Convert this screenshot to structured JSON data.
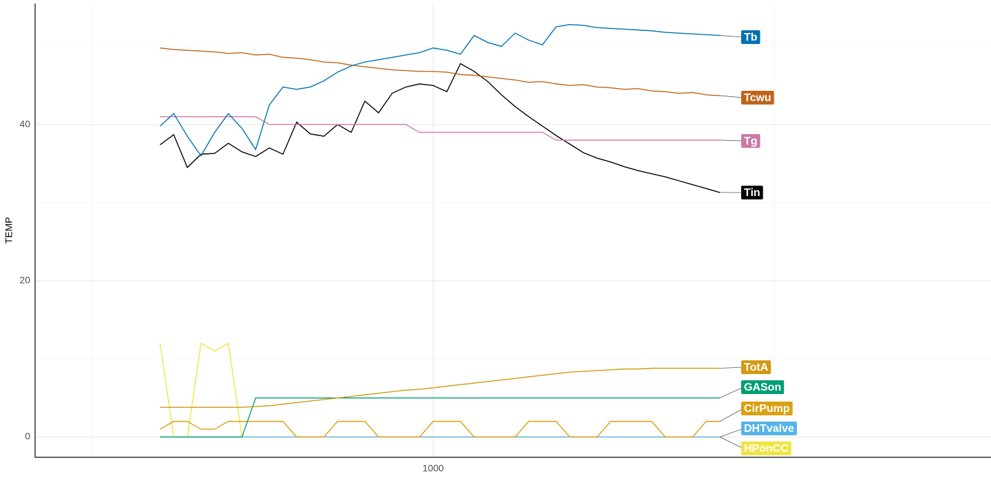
{
  "chart_data": {
    "type": "line",
    "y_label": "TEMP",
    "x": [
      600,
      620,
      640,
      660,
      680,
      700,
      720,
      740,
      760,
      780,
      800,
      820,
      840,
      860,
      880,
      900,
      920,
      940,
      960,
      980,
      1000,
      1020,
      1040,
      1060,
      1080,
      1100,
      1120,
      1140,
      1160,
      1180,
      1200,
      1220,
      1240,
      1260,
      1280,
      1300,
      1320,
      1340,
      1360,
      1380,
      1400,
      1420
    ],
    "xlim": [
      417,
      1817
    ],
    "xticks": [
      1000
    ],
    "x_minor_ticks": [
      500,
      1500
    ],
    "ylim": [
      -2.6,
      55.5
    ],
    "yticks": [
      0,
      20,
      40
    ],
    "y_minor_ticks": [
      10,
      30,
      50
    ],
    "grid": true,
    "series": [
      {
        "name": "HPonCC",
        "color": "#F0E442",
        "values": [
          12,
          0,
          0,
          12,
          11,
          12,
          0,
          0,
          0,
          0,
          0,
          0,
          0,
          0,
          0,
          0,
          0,
          0,
          0,
          0,
          0,
          0,
          0,
          0,
          0,
          0,
          0,
          0,
          0,
          0,
          0,
          0,
          0,
          0,
          0,
          0,
          0,
          0,
          0,
          0,
          0,
          0
        ]
      },
      {
        "name": "DHTvalve",
        "color": "#56B4E9",
        "values": [
          0,
          0,
          0,
          0,
          0,
          0,
          0,
          0,
          0,
          0,
          0,
          0,
          0,
          0,
          0,
          0,
          0,
          0,
          0,
          0,
          0,
          0,
          0,
          0,
          0,
          0,
          0,
          0,
          0,
          0,
          0,
          0,
          0,
          0,
          0,
          0,
          0,
          0,
          0,
          0,
          0,
          0
        ]
      },
      {
        "name": "CirPump",
        "color": "#D9A010",
        "values": [
          1,
          2,
          2,
          1,
          1,
          2,
          2,
          2,
          2,
          2,
          0,
          0,
          0,
          2,
          2,
          2,
          0,
          0,
          0,
          0,
          2,
          2,
          2,
          0,
          0,
          0,
          0,
          2,
          2,
          2,
          0,
          0,
          0,
          2,
          2,
          2,
          2,
          0,
          0,
          0,
          2,
          2
        ]
      },
      {
        "name": "GASon",
        "color": "#009E73",
        "values": [
          0,
          0,
          0,
          0,
          0,
          0,
          0,
          5,
          5,
          5,
          5,
          5,
          5,
          5,
          5,
          5,
          5,
          5,
          5,
          5,
          5,
          5,
          5,
          5,
          5,
          5,
          5,
          5,
          5,
          5,
          5,
          5,
          5,
          5,
          5,
          5,
          5,
          5,
          5,
          5,
          5,
          5
        ]
      },
      {
        "name": "TotA",
        "color": "#D19A12",
        "values": [
          3.8,
          3.8,
          3.8,
          3.8,
          3.8,
          3.8,
          3.8,
          3.9,
          4.0,
          4.2,
          4.4,
          4.6,
          4.8,
          5.0,
          5.2,
          5.4,
          5.6,
          5.8,
          6.0,
          6.1,
          6.3,
          6.5,
          6.7,
          6.9,
          7.1,
          7.3,
          7.5,
          7.7,
          7.9,
          8.1,
          8.3,
          8.4,
          8.5,
          8.6,
          8.7,
          8.7,
          8.8,
          8.8,
          8.8,
          8.8,
          8.8,
          8.8
        ]
      },
      {
        "name": "Tin",
        "color": "#000000",
        "values": [
          37.4,
          38.7,
          34.5,
          36.2,
          36.3,
          37.6,
          36.5,
          35.9,
          37.0,
          36.2,
          40.3,
          38.8,
          38.5,
          40.0,
          39.0,
          43.0,
          41.5,
          44.0,
          44.8,
          45.2,
          45.0,
          44.2,
          47.8,
          46.8,
          45.5,
          43.8,
          42.3,
          41.0,
          39.8,
          38.6,
          37.5,
          36.4,
          35.7,
          35.2,
          34.6,
          34.1,
          33.7,
          33.3,
          32.8,
          32.3,
          31.8,
          31.3
        ]
      },
      {
        "name": "Tg",
        "color": "#CC79A7",
        "values": [
          41,
          41,
          41,
          41,
          41,
          41,
          41,
          41,
          40,
          40,
          40,
          40,
          40,
          40,
          40,
          40,
          40,
          40,
          40,
          39,
          39,
          39,
          39,
          39,
          39,
          39,
          39,
          39,
          39,
          38,
          38,
          38,
          38,
          38,
          38,
          38,
          38,
          38,
          38,
          38,
          38,
          38
        ]
      },
      {
        "name": "Tcwu",
        "color": "#C0651A",
        "values": [
          49.8,
          49.6,
          49.5,
          49.4,
          49.3,
          49.1,
          49.2,
          48.9,
          49.0,
          48.6,
          48.5,
          48.3,
          48.0,
          47.9,
          47.6,
          47.4,
          47.2,
          47.0,
          46.9,
          46.8,
          46.8,
          46.7,
          46.4,
          46.3,
          46.1,
          45.9,
          45.7,
          45.4,
          45.5,
          45.2,
          45.0,
          45.1,
          44.8,
          44.7,
          44.5,
          44.6,
          44.3,
          44.2,
          44.0,
          44.1,
          43.8,
          43.7
        ]
      },
      {
        "name": "Tb",
        "color": "#0072B2",
        "values": [
          39.8,
          41.4,
          38.5,
          36.0,
          39.0,
          41.4,
          39.5,
          36.8,
          42.5,
          44.8,
          44.5,
          44.8,
          45.6,
          46.7,
          47.5,
          48.0,
          48.3,
          48.6,
          48.9,
          49.2,
          49.8,
          49.5,
          49.0,
          51.4,
          50.5,
          50.0,
          51.7,
          50.8,
          50.2,
          52.5,
          52.8,
          52.7,
          52.4,
          52.3,
          52.2,
          52.1,
          52.0,
          51.8,
          51.7,
          51.6,
          51.5,
          51.4
        ]
      }
    ]
  }
}
